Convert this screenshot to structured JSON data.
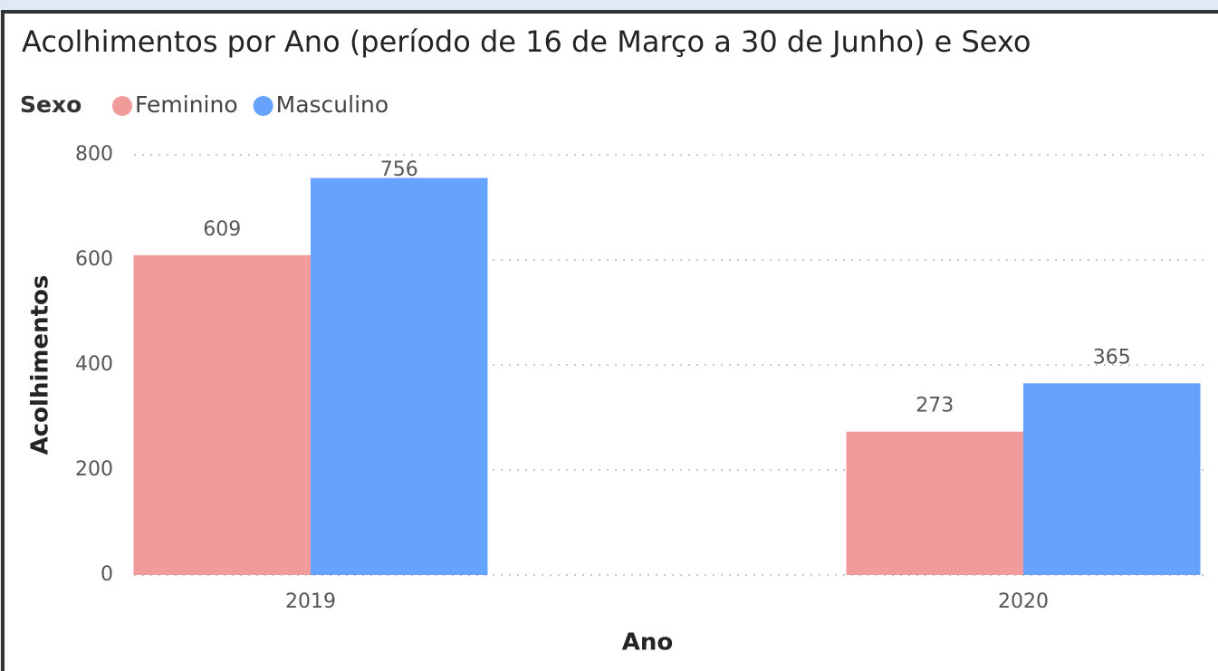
{
  "chart_data": {
    "type": "bar",
    "title": "Acolhimentos por Ano (período de 16 de Março a 30 de Junho) e Sexo",
    "legend_title": "Sexo",
    "legend": "top-left",
    "x_label": "Ano",
    "y_label": "Acolhimentos",
    "categories": [
      "2019",
      "2020"
    ],
    "series": [
      {
        "name": "Feminino",
        "color": "#f29b9b",
        "values": [
          609,
          273
        ]
      },
      {
        "name": "Masculino",
        "color": "#66a3ff",
        "values": [
          756,
          365
        ]
      }
    ],
    "ylim": [
      0,
      800
    ],
    "yticks": [
      0,
      200,
      400,
      600,
      800
    ],
    "grid": true
  }
}
